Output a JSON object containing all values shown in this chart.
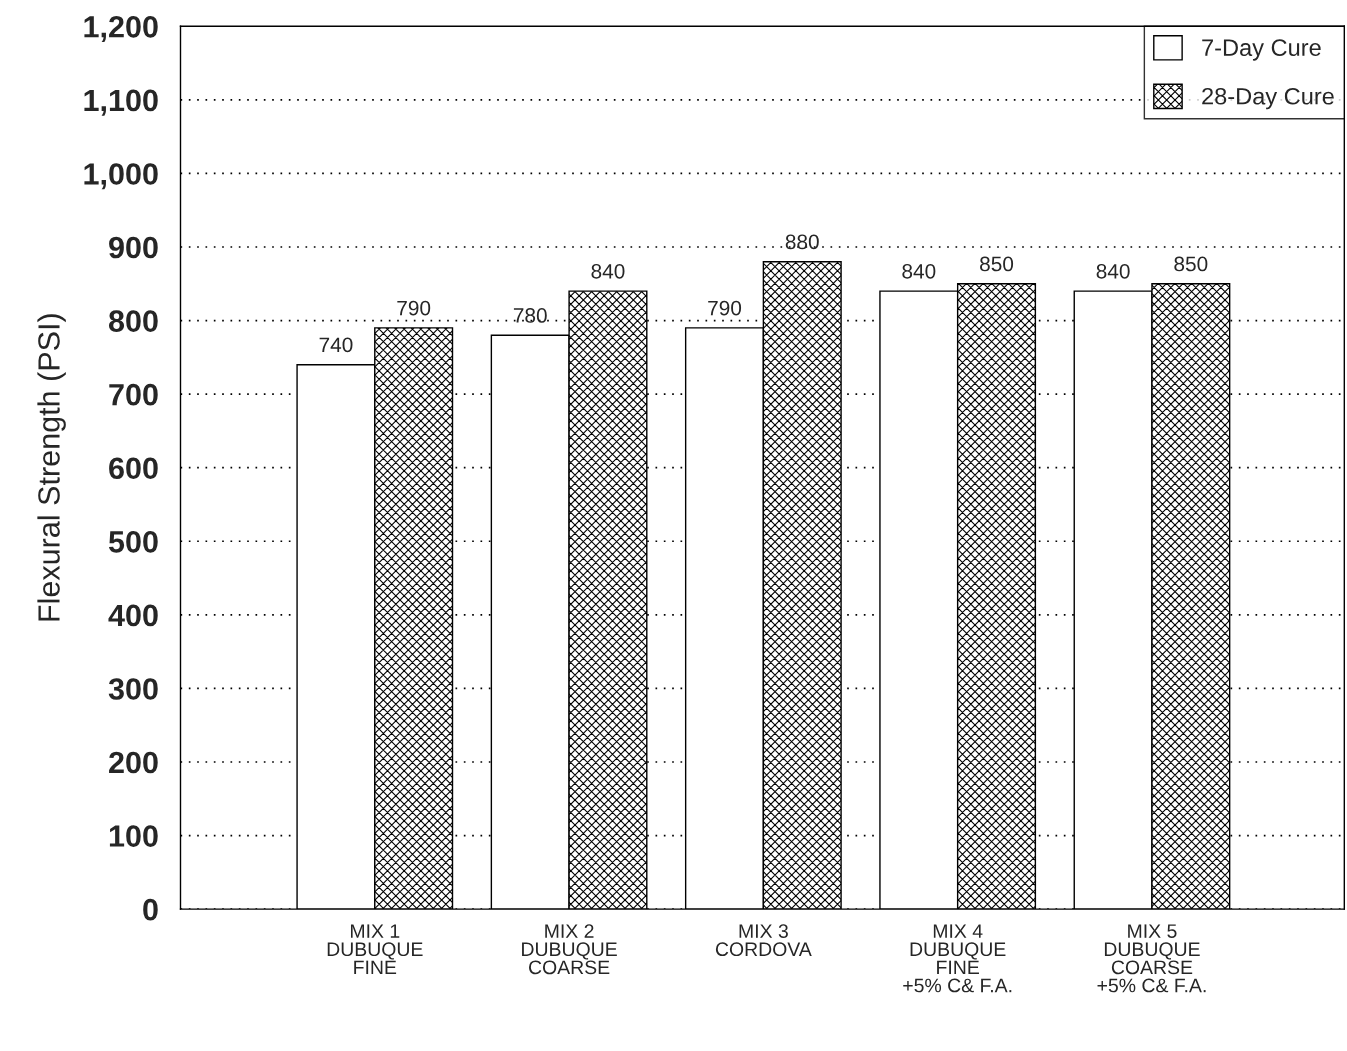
{
  "chart_data": {
    "type": "bar",
    "ylabel": "Flexural Strength (PSI)",
    "categories": [
      "MIX 1\nDUBUQUE\nFINE",
      "MIX 2\nDUBUQUE\nCOARSE",
      "MIX 3\nCORDOVA",
      "MIX 4\nDUBUQUE\nFINE\n+5% C& F.A.",
      "MIX 5\nDUBUQUE\nCOARSE\n+5% C& F.A."
    ],
    "series": [
      {
        "name": "7-Day Cure",
        "color": "#ffffff",
        "values": [
          740,
          780,
          790,
          840,
          840
        ]
      },
      {
        "name": "28-Day Cure",
        "color": "#000000",
        "values": [
          790,
          840,
          880,
          850,
          850
        ]
      }
    ],
    "ylim": [
      0,
      1200
    ],
    "yticks": [
      0,
      100,
      200,
      300,
      400,
      500,
      600,
      700,
      800,
      900,
      {
        "value": 1000,
        "label": "1,000"
      },
      {
        "value": 1100,
        "label": "1,100"
      },
      {
        "value": 1200,
        "label": "1,200"
      }
    ],
    "grid": "y",
    "legend": "top right",
    "data_labels": true
  }
}
